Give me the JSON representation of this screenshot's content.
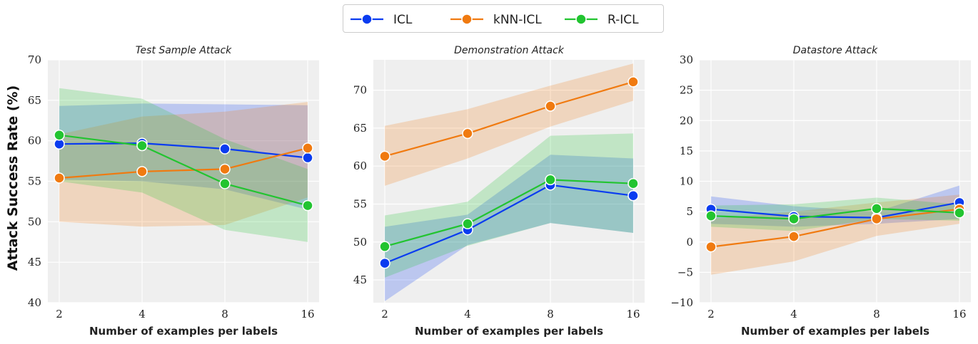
{
  "colors": {
    "ICL": "#0a3cf0",
    "kNN-ICL": "#f07a10",
    "R-ICL": "#22c430"
  },
  "legend": {
    "items": [
      {
        "series": "ICL",
        "label": "ICL"
      },
      {
        "series": "kNN-ICL",
        "label": "kNN-ICL"
      },
      {
        "series": "R-ICL",
        "label": "R-ICL"
      }
    ]
  },
  "ylabel": "Attack Success Rate (%)",
  "chart_data": [
    {
      "type": "line",
      "title": "Test Sample Attack",
      "xlabel": "Number of examples per labels",
      "categories": [
        "2",
        "4",
        "8",
        "16"
      ],
      "ylim": [
        40,
        70
      ],
      "yticks": [
        40,
        45,
        50,
        55,
        60,
        65,
        70
      ],
      "grid": true,
      "series": [
        {
          "name": "ICL",
          "values": [
            59.6,
            59.7,
            59.0,
            57.9
          ],
          "lower": [
            55.2,
            55.0,
            54.0,
            51.5
          ],
          "upper": [
            64.3,
            64.6,
            64.5,
            64.4
          ]
        },
        {
          "name": "kNN-ICL",
          "values": [
            55.4,
            56.2,
            56.5,
            59.1
          ],
          "lower": [
            50.0,
            49.4,
            49.6,
            53.0
          ],
          "upper": [
            60.8,
            63.0,
            63.6,
            64.8
          ]
        },
        {
          "name": "R-ICL",
          "values": [
            60.7,
            59.4,
            54.7,
            52.0
          ],
          "lower": [
            55.0,
            53.6,
            49.0,
            47.5
          ],
          "upper": [
            66.5,
            65.2,
            60.2,
            56.5
          ]
        }
      ]
    },
    {
      "type": "line",
      "title": "Demonstration Attack",
      "xlabel": "Number of examples per labels",
      "categories": [
        "2",
        "4",
        "8",
        "16"
      ],
      "ylim": [
        42,
        74
      ],
      "yticks": [
        45,
        50,
        55,
        60,
        65,
        70
      ],
      "grid": true,
      "series": [
        {
          "name": "ICL",
          "values": [
            47.2,
            51.6,
            57.5,
            56.1
          ],
          "lower": [
            42.2,
            49.6,
            52.5,
            51.2
          ],
          "upper": [
            52.0,
            53.6,
            61.5,
            61.0
          ]
        },
        {
          "name": "kNN-ICL",
          "values": [
            61.3,
            64.3,
            67.9,
            71.1
          ],
          "lower": [
            57.4,
            61.0,
            65.2,
            68.6
          ],
          "upper": [
            65.3,
            67.5,
            70.6,
            73.5
          ]
        },
        {
          "name": "R-ICL",
          "values": [
            49.4,
            52.4,
            58.2,
            57.7
          ],
          "lower": [
            45.3,
            49.5,
            52.5,
            51.2
          ],
          "upper": [
            53.5,
            55.3,
            64.0,
            64.3
          ]
        }
      ]
    },
    {
      "type": "line",
      "title": "Datastore Attack",
      "xlabel": "Number of examples per labels",
      "categories": [
        "2",
        "4",
        "8",
        "16"
      ],
      "ylim": [
        -10,
        30
      ],
      "yticks": [
        -10,
        -5,
        0,
        5,
        10,
        15,
        20,
        25,
        30
      ],
      "grid": true,
      "series": [
        {
          "name": "ICL",
          "values": [
            5.4,
            4.2,
            4.0,
            6.5
          ],
          "lower": [
            3.0,
            2.5,
            3.0,
            3.8
          ],
          "upper": [
            7.5,
            5.9,
            5.0,
            9.3
          ]
        },
        {
          "name": "kNN-ICL",
          "values": [
            -0.8,
            0.9,
            3.8,
            5.4
          ],
          "lower": [
            -5.4,
            -3.2,
            1.0,
            3.0
          ],
          "upper": [
            3.8,
            5.0,
            6.5,
            7.8
          ]
        },
        {
          "name": "R-ICL",
          "values": [
            4.3,
            3.8,
            5.5,
            4.8
          ],
          "lower": [
            2.5,
            1.8,
            3.8,
            3.5
          ],
          "upper": [
            6.0,
            6.2,
            7.3,
            6.2
          ]
        }
      ]
    }
  ]
}
